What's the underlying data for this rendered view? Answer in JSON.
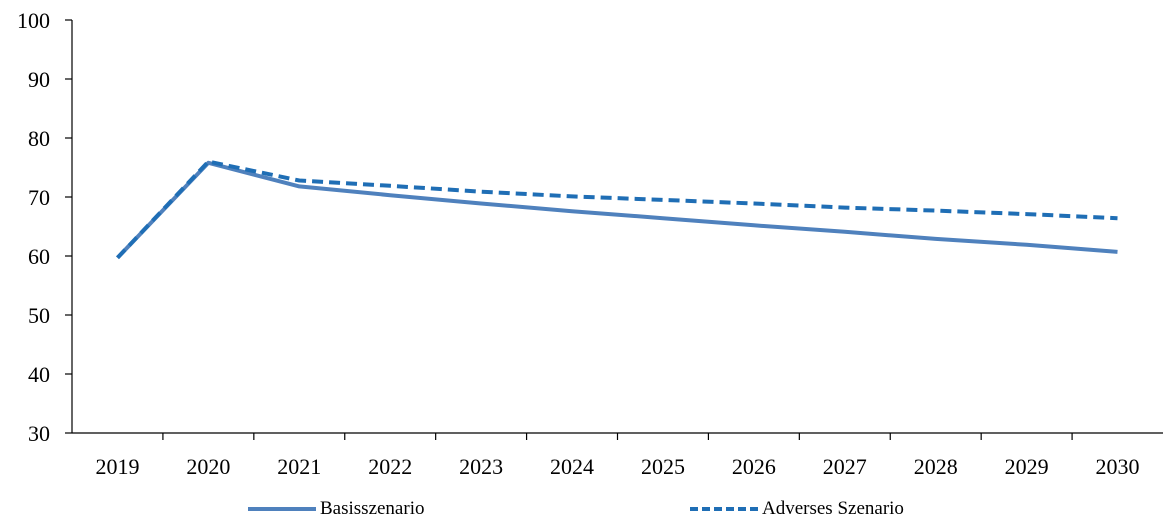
{
  "chart_data": {
    "type": "line",
    "x": [
      "2019",
      "2020",
      "2021",
      "2022",
      "2023",
      "2024",
      "2025",
      "2026",
      "2027",
      "2028",
      "2029",
      "2030"
    ],
    "series": [
      {
        "name": "Basisszenario",
        "values": [
          59.7,
          75.8,
          71.8,
          70.3,
          68.9,
          67.6,
          66.4,
          65.2,
          64.1,
          62.9,
          61.9,
          60.7
        ],
        "color": "#4F81BD",
        "style": "solid"
      },
      {
        "name": "Adverses Szenario",
        "values": [
          59.7,
          76.0,
          72.8,
          71.9,
          70.9,
          70.1,
          69.5,
          68.9,
          68.2,
          67.7,
          67.1,
          66.4
        ],
        "color": "#1F6EB5",
        "style": "dashed"
      }
    ],
    "yticks": [
      "30",
      "40",
      "50",
      "60",
      "70",
      "80",
      "90",
      "100"
    ],
    "ylim": [
      30,
      100
    ],
    "grid": false,
    "legend_position": "bottom"
  }
}
